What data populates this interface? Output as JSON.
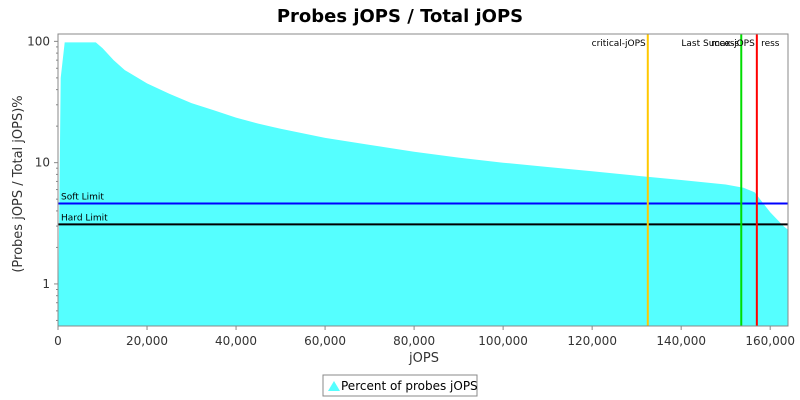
{
  "chart_data": {
    "type": "area",
    "title": "Probes jOPS / Total jOPS",
    "xlabel": "jOPS",
    "ylabel": "(Probes jOPS / Total jOPS)%",
    "xlim": [
      0,
      164000
    ],
    "ylim": [
      0.45,
      115
    ],
    "y_scale": "log",
    "x_ticks": [
      0,
      20000,
      40000,
      60000,
      80000,
      100000,
      120000,
      140000,
      160000
    ],
    "x_tick_labels": [
      "0",
      "20,000",
      "40,000",
      "60,000",
      "80,000",
      "100,000",
      "120,000",
      "140,000",
      "160,000"
    ],
    "y_ticks": [
      1,
      10,
      100
    ],
    "y_tick_labels": [
      "1",
      "10",
      "100"
    ],
    "grid": false,
    "legend": "bottom",
    "series": [
      {
        "name": "Percent of probes jOPS",
        "color": "#55ffff",
        "x": [
          0,
          600,
          1500,
          3000,
          6000,
          8500,
          10000,
          12500,
          15000,
          20000,
          25000,
          30000,
          35000,
          40000,
          45000,
          50000,
          60000,
          70000,
          80000,
          90000,
          100000,
          110000,
          120000,
          130000,
          140000,
          150000,
          154000,
          156500,
          160000,
          163000,
          164000
        ],
        "values": [
          0.45,
          50,
          98,
          98,
          98,
          98,
          88,
          70,
          58,
          45,
          37,
          31,
          27,
          23.5,
          21,
          19,
          16,
          14,
          12.3,
          11,
          10,
          9.2,
          8.5,
          7.8,
          7.2,
          6.6,
          6.2,
          5.7,
          3.9,
          3.0,
          2.8
        ]
      }
    ],
    "reference_lines": [
      {
        "orientation": "horizontal",
        "value": 4.6,
        "label": "Soft Limit",
        "color": "#0000ff"
      },
      {
        "orientation": "horizontal",
        "value": 3.1,
        "label": "Hard Limit",
        "color": "#000000"
      },
      {
        "orientation": "vertical",
        "value": 132500,
        "label": "critical-jOPS",
        "color": "#ffc800"
      },
      {
        "orientation": "vertical",
        "value": 153500,
        "label": "Last Success",
        "color": "#00dd00"
      },
      {
        "orientation": "vertical",
        "value": 157000,
        "label": "max-jOPS",
        "color": "#ff0000"
      },
      {
        "orientation": "vertical",
        "value": 157500,
        "label": "ress",
        "color": "#ff0000",
        "label_only": true
      }
    ]
  }
}
